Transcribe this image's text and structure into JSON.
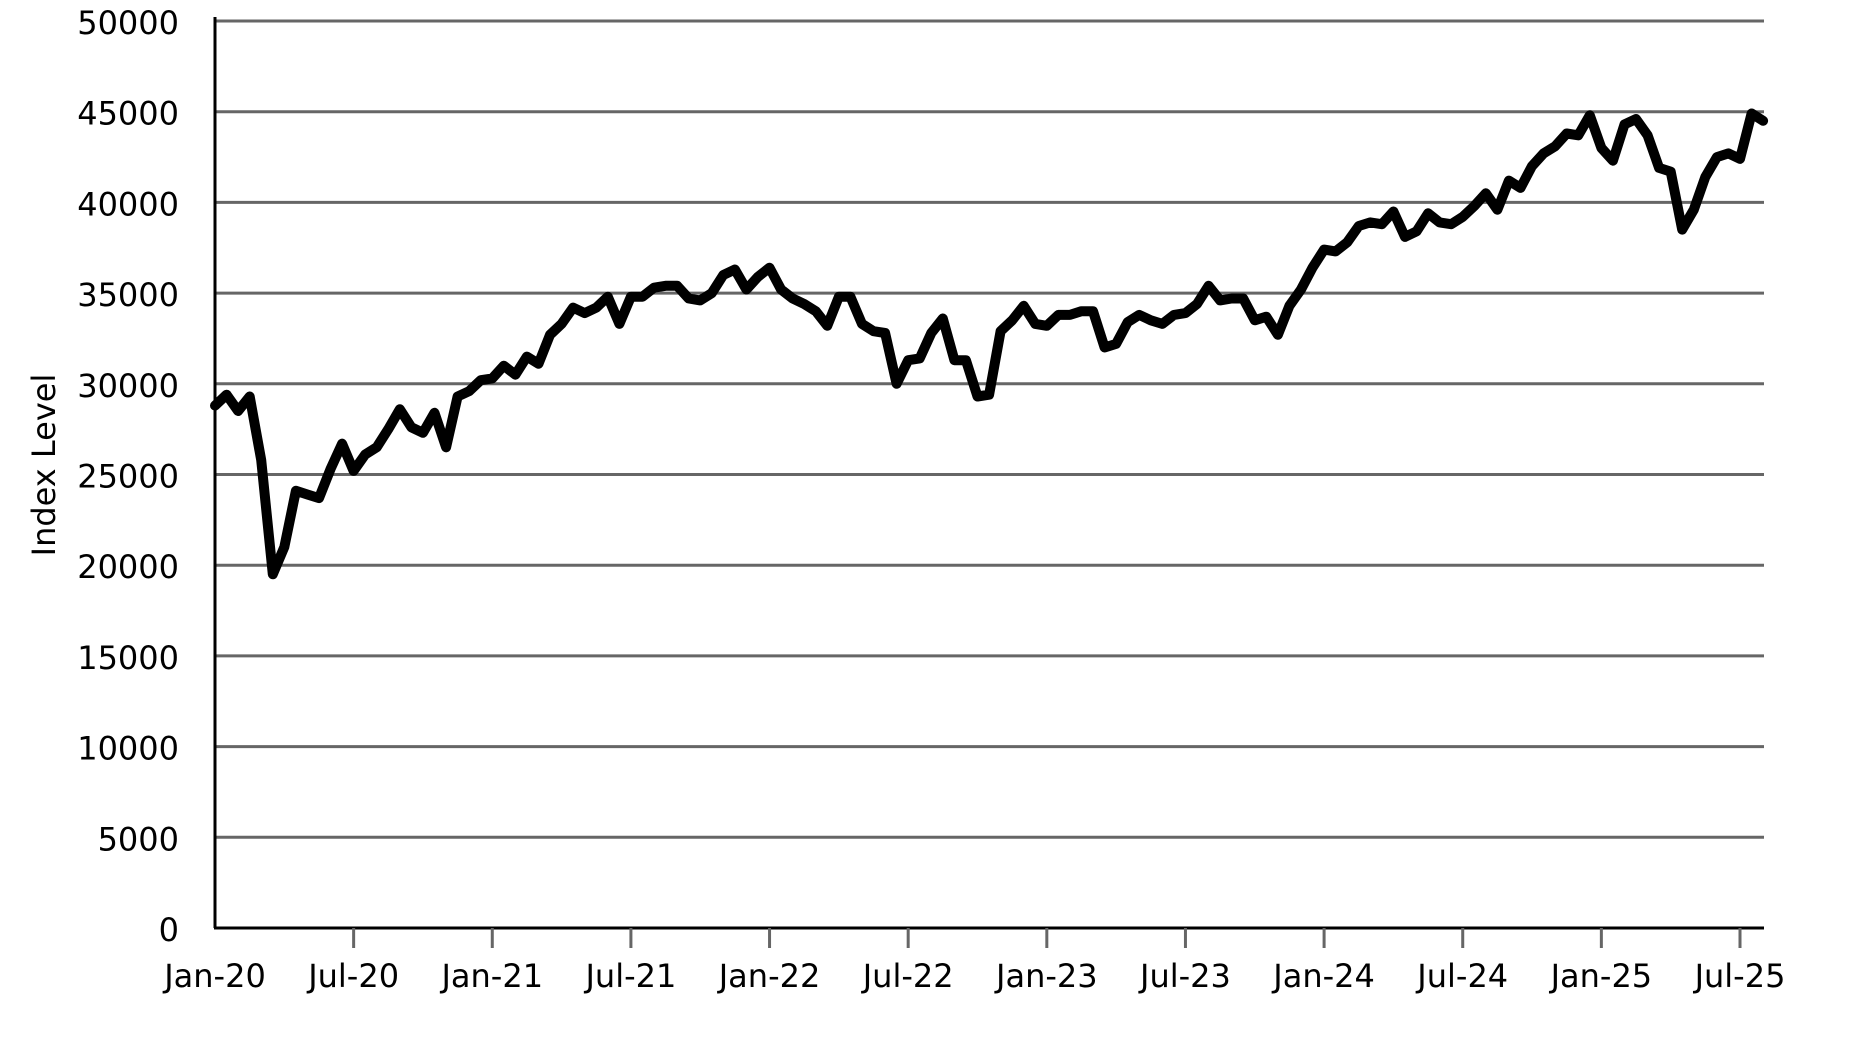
{
  "chart_data": {
    "type": "line",
    "ylabel": "Index Level",
    "categories": [
      "Jan-20",
      null,
      null,
      null,
      null,
      null,
      null,
      null,
      null,
      null,
      null,
      null,
      "Jul-20",
      null,
      null,
      null,
      null,
      null,
      null,
      null,
      null,
      null,
      null,
      null,
      "Jan-21",
      null,
      null,
      null,
      null,
      null,
      null,
      null,
      null,
      null,
      null,
      null,
      "Jul-21",
      null,
      null,
      null,
      null,
      null,
      null,
      null,
      null,
      null,
      null,
      null,
      "Jan-22",
      null,
      null,
      null,
      null,
      null,
      null,
      null,
      null,
      null,
      null,
      null,
      "Jul-22",
      null,
      null,
      null,
      null,
      null,
      null,
      null,
      null,
      null,
      null,
      null,
      "Jan-23",
      null,
      null,
      null,
      null,
      null,
      null,
      null,
      null,
      null,
      null,
      null,
      "Jul-23",
      null,
      null,
      null,
      null,
      null,
      null,
      null,
      null,
      null,
      null,
      null,
      "Jan-24",
      null,
      null,
      null,
      null,
      null,
      null,
      null,
      null,
      null,
      null,
      null,
      "Jul-24",
      null,
      null,
      null,
      null,
      null,
      null,
      null,
      null,
      null,
      null,
      null,
      "Jan-25",
      null,
      null,
      null,
      null,
      null,
      null,
      null,
      null,
      null,
      null,
      null,
      "Jul-25",
      null,
      null
    ],
    "values": [
      28800,
      29400,
      28500,
      29300,
      25800,
      19500,
      21000,
      24100,
      23900,
      23700,
      25300,
      26700,
      25200,
      26100,
      26500,
      27500,
      28600,
      27600,
      27300,
      28400,
      26500,
      29300,
      29600,
      30200,
      30300,
      31000,
      30500,
      31500,
      31100,
      32700,
      33300,
      34200,
      33900,
      34200,
      34800,
      33300,
      34800,
      34800,
      35300,
      35400,
      35400,
      34700,
      34600,
      35000,
      36000,
      36300,
      35200,
      35900,
      36400,
      35200,
      34700,
      34400,
      34000,
      33200,
      34800,
      34800,
      33300,
      32900,
      32800,
      30000,
      31300,
      31400,
      32800,
      33600,
      31300,
      31300,
      29300,
      29400,
      32900,
      33500,
      34300,
      33300,
      33200,
      33800,
      33800,
      34000,
      34000,
      32000,
      32200,
      33400,
      33800,
      33500,
      33300,
      33800,
      33900,
      34400,
      35400,
      34600,
      34700,
      34700,
      33500,
      33700,
      32700,
      34300,
      35200,
      36400,
      37400,
      37300,
      37800,
      38700,
      38900,
      38800,
      39500,
      38100,
      38400,
      39400,
      38900,
      38800,
      39200,
      39800,
      40500,
      39600,
      41200,
      40800,
      42000,
      42700,
      43100,
      43800,
      43700,
      44800,
      43000,
      42300,
      44300,
      44600,
      43700,
      41900,
      41700,
      38500,
      39600,
      41400,
      42500,
      42700,
      42400,
      44900,
      44500
    ],
    "color": "#000000",
    "ylim": [
      0,
      50000
    ],
    "yticks": [
      0,
      5000,
      10000,
      15000,
      20000,
      25000,
      30000,
      35000,
      40000,
      45000,
      50000
    ],
    "grid": true
  }
}
